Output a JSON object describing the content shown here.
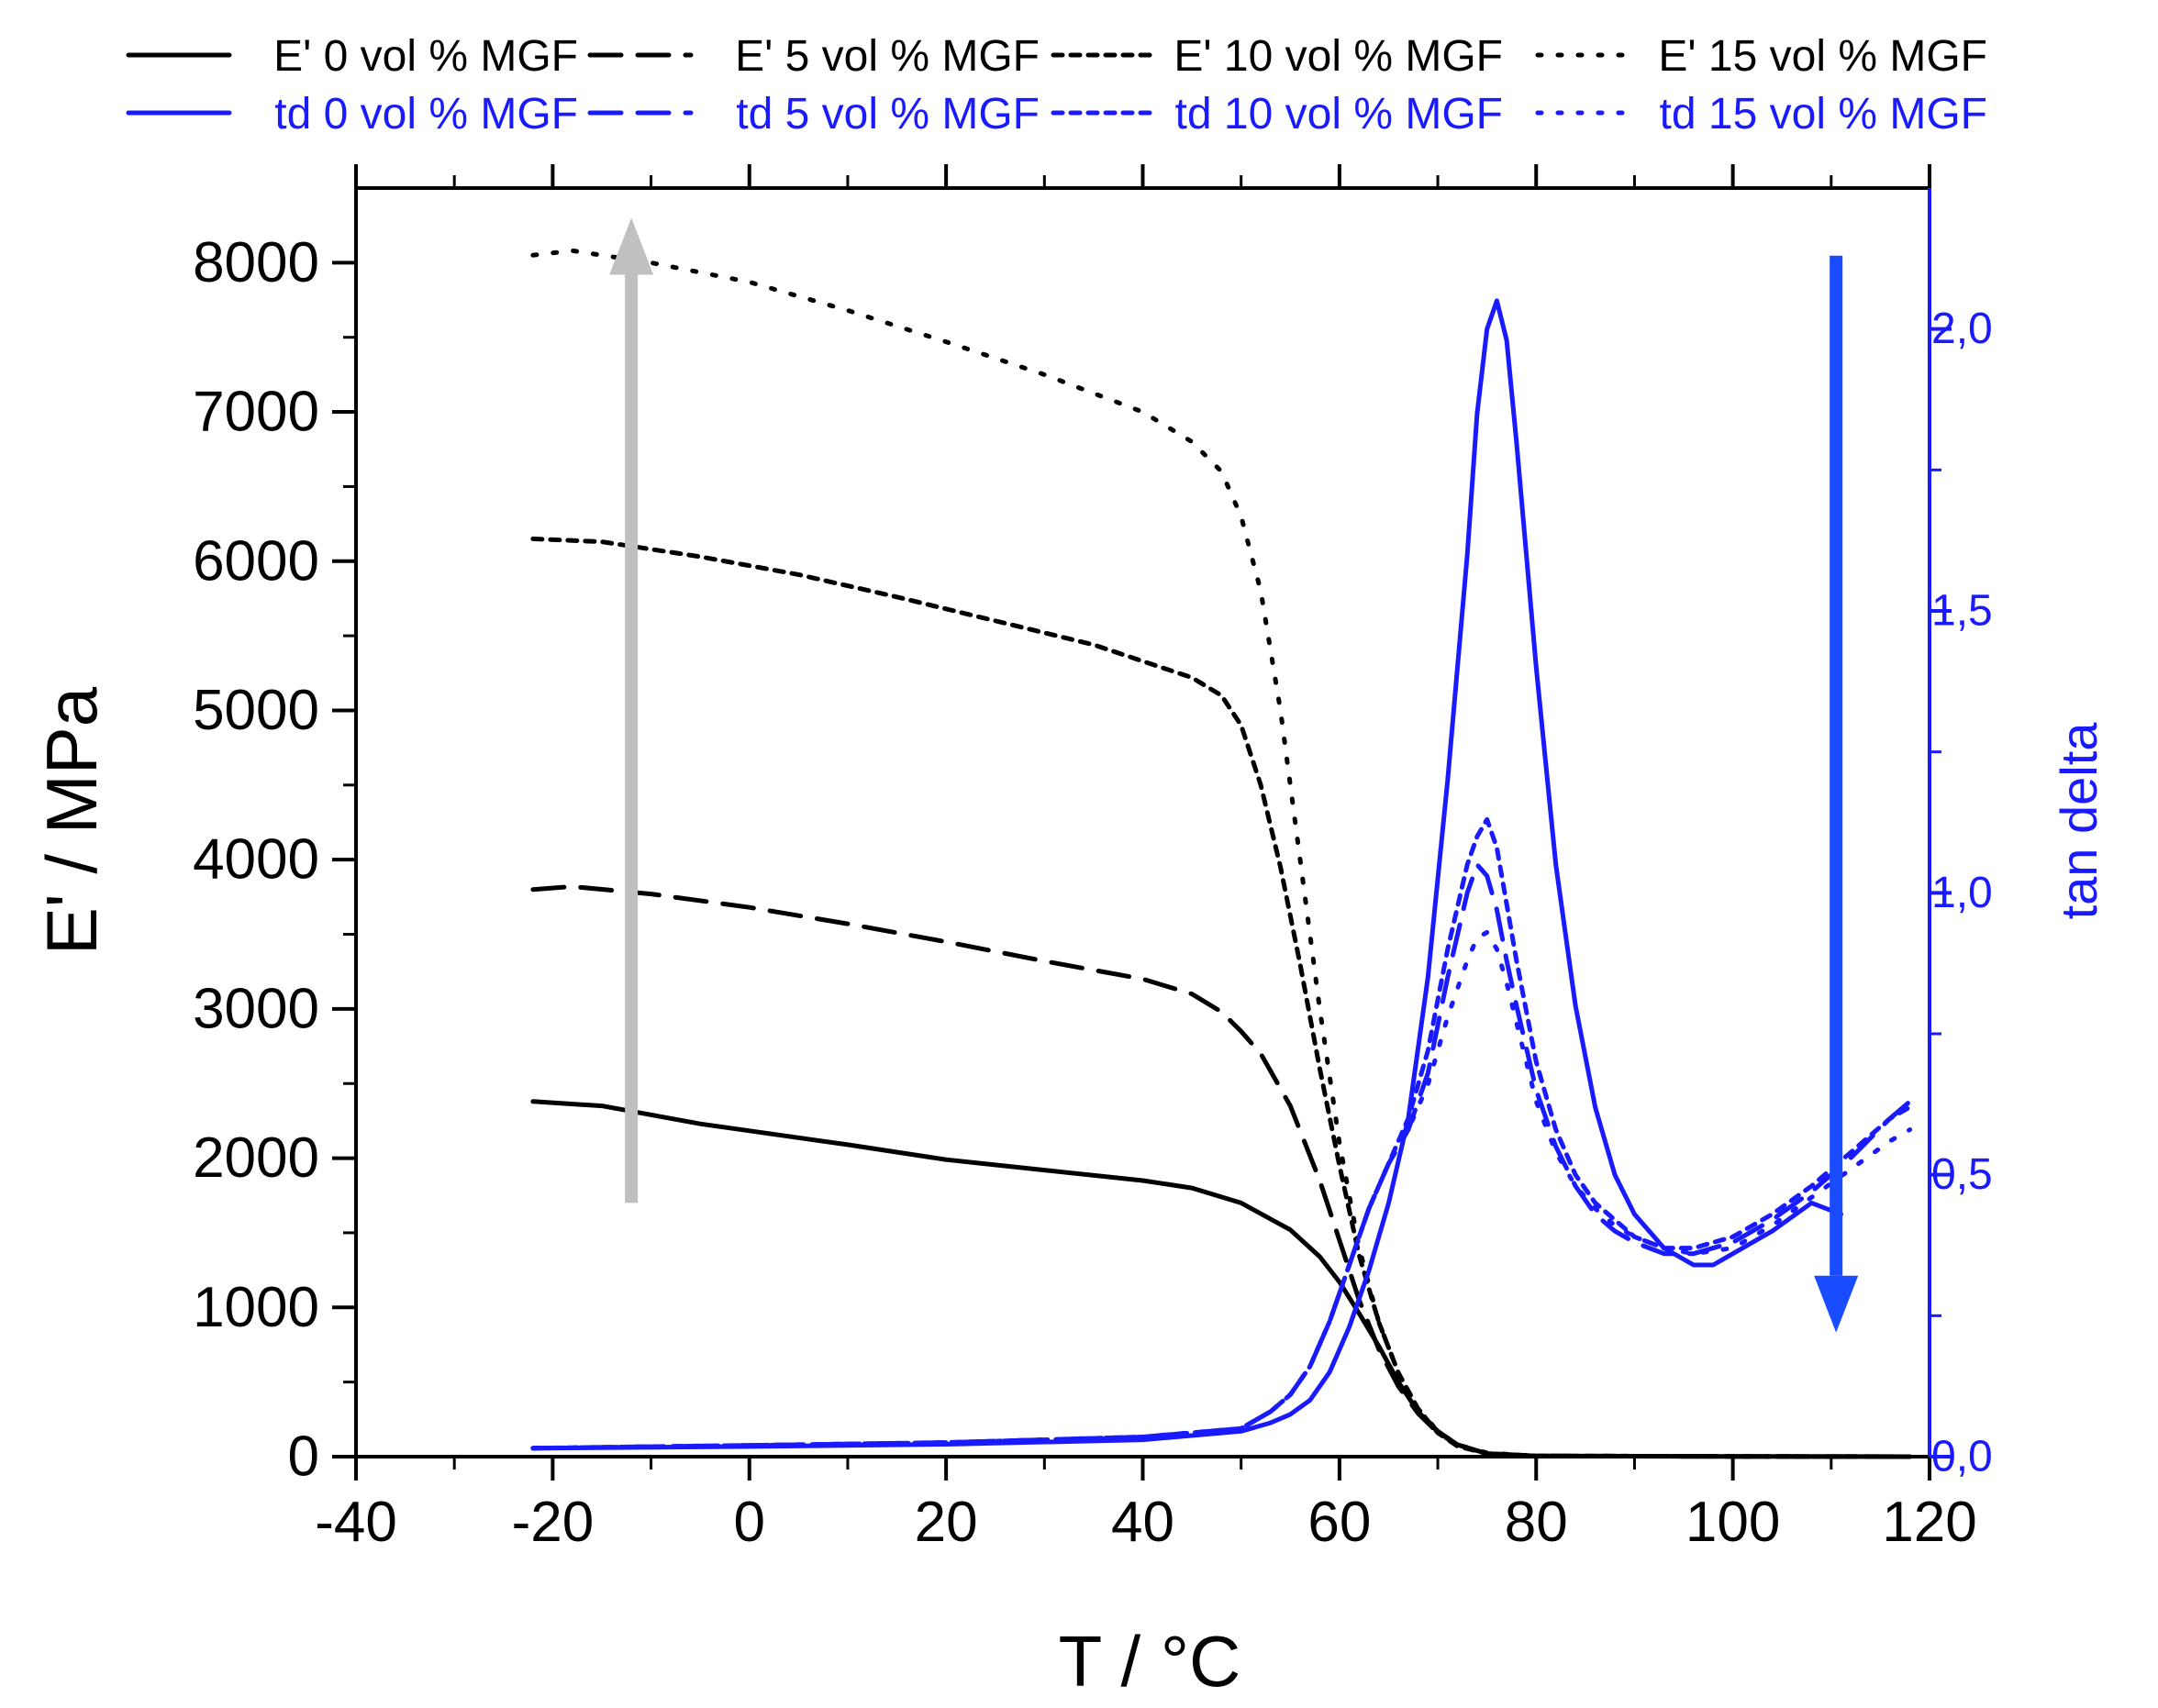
{
  "chart_data": {
    "type": "line",
    "title": "",
    "xlabel": "T / °C",
    "ylabel": "E' / MPa",
    "y2label": "tan delta",
    "xlim": [
      -40,
      120
    ],
    "ylim": [
      0,
      8500
    ],
    "y2lim": [
      0,
      2.25
    ],
    "x_ticks": [
      "-40",
      "0",
      "20",
      "40",
      "60",
      "80",
      "100",
      "120",
      "-20"
    ],
    "x_tick_values": [
      -40,
      0,
      20,
      40,
      60,
      80,
      100,
      120,
      -20
    ],
    "y_ticks": [
      "0",
      "1000",
      "2000",
      "3000",
      "4000",
      "5000",
      "6000",
      "7000",
      "8000"
    ],
    "y_tick_values": [
      0,
      1000,
      2000,
      3000,
      4000,
      5000,
      6000,
      7000,
      8000
    ],
    "y2_ticks": [
      "0,0",
      "0,5",
      "1,0",
      "1,5",
      "2,0"
    ],
    "y2_tick_values": [
      0,
      0.5,
      1.0,
      1.5,
      2.0
    ],
    "colors": {
      "storage": "#000000",
      "tandelta": "#1a1aff",
      "arrow_up": "#c0c0c0",
      "arrow_down": "#1a4cff"
    },
    "series": [
      {
        "name": "E' 0 vol % MGF",
        "axis": "left",
        "style": "solid",
        "x": [
          -22,
          -15,
          -5,
          10,
          20,
          30,
          40,
          45,
          50,
          55,
          58,
          60,
          62,
          64,
          66,
          68,
          70,
          72,
          75,
          80,
          100,
          118
        ],
        "y": [
          2380,
          2350,
          2230,
          2090,
          1990,
          1920,
          1850,
          1800,
          1700,
          1520,
          1340,
          1170,
          960,
          740,
          500,
          300,
          170,
          80,
          20,
          5,
          2,
          0
        ]
      },
      {
        "name": "E' 5 vol % MGF",
        "axis": "left",
        "style": "dash",
        "x": [
          -22,
          -18,
          -10,
          0,
          10,
          20,
          30,
          40,
          45,
          48,
          50,
          52,
          55,
          58,
          60,
          62,
          64,
          66,
          68,
          70,
          72,
          75,
          80,
          100,
          118
        ],
        "y": [
          3800,
          3820,
          3770,
          3680,
          3570,
          3450,
          3320,
          3200,
          3100,
          2980,
          2850,
          2700,
          2350,
          1850,
          1450,
          1050,
          720,
          470,
          290,
          160,
          80,
          20,
          5,
          2,
          0
        ]
      },
      {
        "name": "E' 10 vol % MGF",
        "axis": "left",
        "style": "shortdash",
        "x": [
          -22,
          -15,
          -5,
          5,
          15,
          25,
          35,
          40,
          45,
          48,
          50,
          52,
          54,
          56,
          58,
          60,
          62,
          64,
          66,
          68,
          70,
          72,
          75,
          80,
          100,
          118
        ],
        "y": [
          6150,
          6130,
          6030,
          5910,
          5760,
          5600,
          5440,
          5330,
          5220,
          5100,
          4900,
          4500,
          3950,
          3300,
          2600,
          1950,
          1350,
          900,
          560,
          320,
          160,
          70,
          20,
          5,
          2,
          0
        ]
      },
      {
        "name": "E' 15 vol % MGF",
        "axis": "left",
        "style": "dot",
        "x": [
          -22,
          -18,
          -10,
          0,
          10,
          20,
          30,
          40,
          45,
          48,
          50,
          52,
          54,
          56,
          58,
          60,
          62,
          64,
          66,
          68,
          70,
          72,
          75,
          80,
          100,
          118
        ],
        "y": [
          8050,
          8080,
          8000,
          7870,
          7680,
          7470,
          7250,
          7000,
          6800,
          6600,
          6300,
          5800,
          5000,
          4000,
          3000,
          2100,
          1400,
          900,
          560,
          320,
          170,
          80,
          25,
          5,
          2,
          0
        ]
      },
      {
        "name": "td 0 vol % MGF",
        "axis": "right",
        "style": "solid",
        "x": [
          -22,
          0,
          20,
          40,
          50,
          53,
          55,
          57,
          59,
          61,
          63,
          65,
          67,
          69,
          71,
          73,
          74,
          75,
          76,
          77,
          78,
          80,
          82,
          84,
          86,
          88,
          90,
          93,
          96,
          98,
          100,
          104,
          108,
          111
        ],
        "y": [
          0.015,
          0.018,
          0.022,
          0.03,
          0.045,
          0.06,
          0.075,
          0.1,
          0.15,
          0.23,
          0.33,
          0.45,
          0.6,
          0.85,
          1.2,
          1.6,
          1.85,
          2.0,
          2.05,
          1.98,
          1.8,
          1.4,
          1.05,
          0.8,
          0.62,
          0.5,
          0.43,
          0.37,
          0.34,
          0.34,
          0.36,
          0.4,
          0.45,
          0.43
        ]
      },
      {
        "name": "td 5 vol % MGF",
        "axis": "right",
        "style": "dash",
        "x": [
          -22,
          0,
          20,
          40,
          50,
          53,
          55,
          57,
          59,
          61,
          63,
          65,
          67,
          69,
          71,
          73,
          74,
          75,
          76,
          77,
          78,
          80,
          82,
          84,
          86,
          88,
          90,
          93,
          96,
          100,
          104,
          108,
          112,
          116,
          118
        ],
        "y": [
          0.015,
          0.02,
          0.025,
          0.035,
          0.05,
          0.08,
          0.11,
          0.16,
          0.24,
          0.34,
          0.44,
          0.52,
          0.58,
          0.68,
          0.85,
          1.0,
          1.05,
          1.03,
          0.97,
          0.88,
          0.8,
          0.65,
          0.55,
          0.48,
          0.43,
          0.4,
          0.38,
          0.36,
          0.36,
          0.38,
          0.42,
          0.47,
          0.53,
          0.6,
          0.63
        ]
      },
      {
        "name": "td 10 vol % MGF",
        "axis": "right",
        "style": "shortdash",
        "x": [
          -22,
          0,
          20,
          40,
          50,
          53,
          55,
          57,
          59,
          61,
          63,
          65,
          67,
          69,
          71,
          73,
          74,
          75,
          76,
          77,
          78,
          80,
          82,
          84,
          86,
          88,
          90,
          93,
          96,
          100,
          104,
          108,
          112,
          116,
          118
        ],
        "y": [
          0.015,
          0.02,
          0.025,
          0.035,
          0.05,
          0.08,
          0.11,
          0.16,
          0.24,
          0.34,
          0.44,
          0.52,
          0.6,
          0.72,
          0.9,
          1.05,
          1.1,
          1.13,
          1.08,
          0.98,
          0.88,
          0.7,
          0.58,
          0.5,
          0.45,
          0.42,
          0.39,
          0.37,
          0.37,
          0.39,
          0.43,
          0.48,
          0.54,
          0.6,
          0.62
        ]
      },
      {
        "name": "td 15 vol % MGF",
        "axis": "right",
        "style": "dot",
        "x": [
          -22,
          0,
          20,
          40,
          50,
          53,
          55,
          57,
          59,
          61,
          63,
          65,
          67,
          69,
          71,
          73,
          74,
          75,
          76,
          77,
          78,
          80,
          82,
          84,
          86,
          88,
          90,
          93,
          96,
          100,
          104,
          108,
          112,
          116,
          118
        ],
        "y": [
          0.015,
          0.02,
          0.025,
          0.035,
          0.05,
          0.08,
          0.11,
          0.16,
          0.24,
          0.34,
          0.44,
          0.52,
          0.58,
          0.66,
          0.78,
          0.88,
          0.92,
          0.93,
          0.9,
          0.84,
          0.77,
          0.63,
          0.54,
          0.48,
          0.44,
          0.41,
          0.39,
          0.37,
          0.36,
          0.37,
          0.41,
          0.46,
          0.51,
          0.56,
          0.58
        ]
      }
    ],
    "annotations": [
      {
        "type": "arrow",
        "direction": "up",
        "x": -12,
        "y_from": 1700,
        "y_to": 8300,
        "axis": "left",
        "color": "#c0c0c0"
      },
      {
        "type": "arrow",
        "direction": "down",
        "x": 110.5,
        "y_from": 2.13,
        "y_to": 0.22,
        "axis": "right",
        "color": "#1a4cff"
      }
    ]
  }
}
